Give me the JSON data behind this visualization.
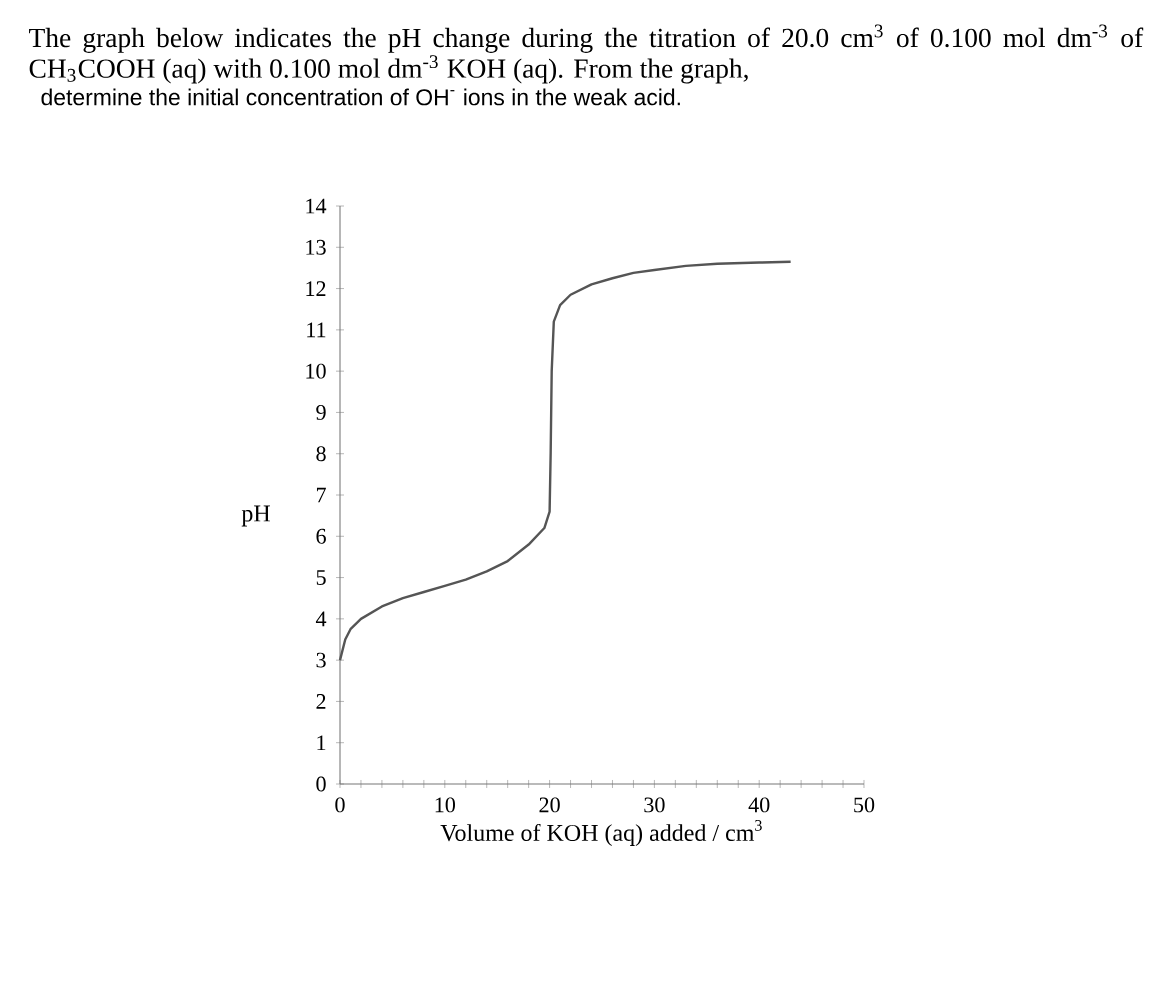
{
  "chart_data": {
    "type": "line",
    "title": "The graph below indicates the pH change during the titration of 20.0 cm$^{3}$ of 0.100 mol dm$^{-3}$ of CH$_{3}$COOH (aq) with 0.100 mol dm$^{-3}$ KOH (aq).  From the graph,",
    "subtitle": "determine the initial concentration of OH$^{-}$ ions in the weak acid.",
    "xlabel": "Volume of KOH (aq) added / cm$^{3}$",
    "ylabel": "pH",
    "x": [
      0,
      0.5,
      1,
      2,
      4,
      6,
      8,
      10,
      12,
      14,
      16,
      18,
      19.5,
      20,
      20.1,
      20.2,
      20.4,
      21,
      22,
      24,
      26,
      28,
      30,
      33,
      36,
      40,
      43
    ],
    "values": [
      3.0,
      3.5,
      3.75,
      4.0,
      4.3,
      4.5,
      4.65,
      4.8,
      4.95,
      5.15,
      5.4,
      5.8,
      6.2,
      6.6,
      8,
      10,
      11.2,
      11.6,
      11.85,
      12.1,
      12.25,
      12.38,
      12.45,
      12.55,
      12.6,
      12.63,
      12.65
    ],
    "color": "#555555",
    "xlim": [
      0,
      50
    ],
    "ylim": [
      0,
      14
    ],
    "xticks": [
      0,
      {
        "value": 2,
        "label": null
      },
      {
        "value": 4,
        "label": null
      },
      {
        "value": 6,
        "label": null
      },
      {
        "value": 8,
        "label": null
      },
      10,
      {
        "value": 12,
        "label": null
      },
      {
        "value": 14,
        "label": null
      },
      {
        "value": 16,
        "label": null
      },
      {
        "value": 18,
        "label": null
      },
      20,
      {
        "value": 22,
        "label": null
      },
      {
        "value": 24,
        "label": null
      },
      {
        "value": 26,
        "label": null
      },
      {
        "value": 28,
        "label": null
      },
      30,
      {
        "value": 32,
        "label": null
      },
      {
        "value": 34,
        "label": null
      },
      {
        "value": 36,
        "label": null
      },
      {
        "value": 38,
        "label": null
      },
      40,
      {
        "value": 42,
        "label": null
      },
      {
        "value": 44,
        "label": null
      },
      {
        "value": 46,
        "label": null
      },
      {
        "value": 48,
        "label": null
      },
      50
    ],
    "yticks": [
      0,
      1,
      2,
      3,
      4,
      5,
      6,
      7,
      8,
      9,
      10,
      11,
      12,
      13,
      14
    ]
  }
}
